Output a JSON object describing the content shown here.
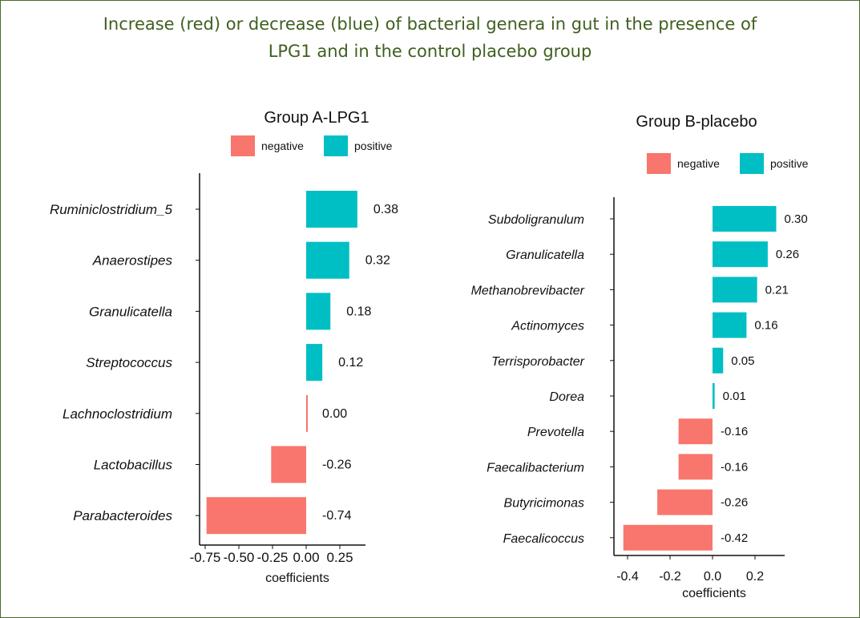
{
  "title_line1": "Increase (red) or decrease (blue) of bacterial genera in gut in the presence of",
  "title_line2": "LPG1 and in the control placebo group",
  "colors": {
    "negative": "#F8766D",
    "positive": "#00BFC4",
    "title": "#3f5f1f"
  },
  "chart_data": [
    {
      "type": "bar",
      "orientation": "horizontal",
      "title": "Group A-LPG1",
      "legend": [
        "negative",
        "positive"
      ],
      "legend_placement": "top",
      "xlabel": "coefficients",
      "xticks": [
        "-0.75",
        "-0.50",
        "-0.25",
        "0.00",
        "0.25"
      ],
      "xtick_values": [
        -0.75,
        -0.5,
        -0.25,
        0,
        0.25
      ],
      "xlim": [
        -0.79,
        0.44
      ],
      "categories": [
        "Ruminiclostridium_5",
        "Anaerostipes",
        "Granulicatella",
        "Streptococcus",
        "Lachnoclostridium",
        "Lactobacillus",
        "Parabacteroides"
      ],
      "values": [
        0.38,
        0.32,
        0.18,
        0.12,
        0.0,
        -0.26,
        -0.74
      ],
      "labels": [
        "0.38",
        "0.32",
        "0.18",
        "0.12",
        "0.00",
        "-0.26",
        "-0.74"
      ]
    },
    {
      "type": "bar",
      "orientation": "horizontal",
      "title": "Group B-placebo",
      "legend": [
        "negative",
        "positive"
      ],
      "legend_placement": "top",
      "xlabel": "coefficients",
      "xticks": [
        "-0.4",
        "-0.2",
        "0.0",
        "0.2"
      ],
      "xtick_values": [
        -0.4,
        -0.2,
        0,
        0.2
      ],
      "xlim": [
        -0.465,
        0.34
      ],
      "categories": [
        "Subdoligranulum",
        "Granulicatella",
        "Methanobrevibacter",
        "Actinomyces",
        "Terrisporobacter",
        "Dorea",
        "Prevotella",
        "Faecalibacterium",
        "Butyricimonas",
        "Faecalicoccus"
      ],
      "values": [
        0.3,
        0.26,
        0.21,
        0.16,
        0.05,
        0.01,
        -0.16,
        -0.16,
        -0.26,
        -0.42
      ],
      "labels": [
        "0.30",
        "0.26",
        "0.21",
        "0.16",
        "0.05",
        "0.01",
        "-0.16",
        "-0.16",
        "-0.26",
        "-0.42"
      ]
    }
  ]
}
